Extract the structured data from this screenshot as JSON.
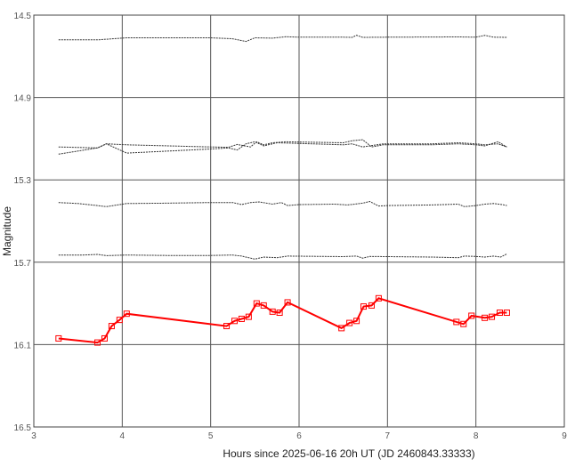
{
  "chart_data": {
    "type": "line",
    "xlabel": "Hours since 2025-06-16 20h UT (JD 2460843.33333)",
    "ylabel": "Magnitude",
    "xlim": [
      3,
      9
    ],
    "ylim": [
      14.5,
      16.5
    ],
    "y_inverted": true,
    "grid": true,
    "x_ticks": [
      "3",
      "4",
      "5",
      "6",
      "7",
      "8",
      "9"
    ],
    "y_ticks": [
      "14.5",
      "14.9",
      "15.3",
      "15.7",
      "16.1",
      "16.5"
    ],
    "series": [
      {
        "color": "#333333",
        "marker": "none",
        "points": [
          [
            3.28,
            14.62
          ],
          [
            3.72,
            14.62
          ],
          [
            4.05,
            14.61
          ],
          [
            5.0,
            14.61
          ],
          [
            5.25,
            14.615
          ],
          [
            5.4,
            14.628
          ],
          [
            5.5,
            14.61
          ],
          [
            5.7,
            14.612
          ],
          [
            5.85,
            14.605
          ],
          [
            6.0,
            14.607
          ],
          [
            6.5,
            14.607
          ],
          [
            6.6,
            14.608
          ],
          [
            6.65,
            14.598
          ],
          [
            6.72,
            14.608
          ],
          [
            7.0,
            14.607
          ],
          [
            7.8,
            14.606
          ],
          [
            8.0,
            14.607
          ],
          [
            8.05,
            14.603
          ],
          [
            8.1,
            14.598
          ],
          [
            8.2,
            14.607
          ],
          [
            8.35,
            14.608
          ]
        ]
      },
      {
        "color": "#333333",
        "marker": "none",
        "points": [
          [
            3.28,
            15.14
          ],
          [
            3.72,
            15.145
          ],
          [
            3.82,
            15.125
          ],
          [
            4.05,
            15.13
          ],
          [
            5.0,
            15.14
          ],
          [
            5.2,
            15.142
          ],
          [
            5.3,
            15.128
          ],
          [
            5.45,
            15.14
          ],
          [
            5.52,
            15.115
          ],
          [
            5.6,
            15.13
          ],
          [
            5.7,
            15.12
          ],
          [
            5.85,
            15.115
          ],
          [
            6.5,
            15.12
          ],
          [
            6.6,
            15.11
          ],
          [
            6.72,
            15.105
          ],
          [
            6.82,
            15.14
          ],
          [
            6.95,
            15.13
          ],
          [
            7.5,
            15.13
          ],
          [
            7.8,
            15.125
          ],
          [
            8.0,
            15.13
          ],
          [
            8.1,
            15.135
          ],
          [
            8.25,
            15.115
          ],
          [
            8.35,
            15.14
          ]
        ]
      },
      {
        "color": "#333333",
        "marker": "none",
        "points": [
          [
            3.28,
            15.175
          ],
          [
            3.72,
            15.145
          ],
          [
            3.82,
            15.125
          ],
          [
            4.05,
            15.17
          ],
          [
            5.0,
            15.15
          ],
          [
            5.2,
            15.145
          ],
          [
            5.3,
            15.155
          ],
          [
            5.4,
            15.125
          ],
          [
            5.5,
            15.115
          ],
          [
            5.6,
            15.135
          ],
          [
            5.75,
            15.12
          ],
          [
            6.5,
            15.13
          ],
          [
            6.6,
            15.125
          ],
          [
            6.72,
            15.14
          ],
          [
            6.95,
            15.125
          ],
          [
            7.5,
            15.125
          ],
          [
            7.8,
            15.12
          ],
          [
            8.0,
            15.125
          ],
          [
            8.1,
            15.13
          ],
          [
            8.25,
            15.125
          ],
          [
            8.35,
            15.14
          ]
        ]
      },
      {
        "color": "#333333",
        "marker": "none",
        "points": [
          [
            3.28,
            15.41
          ],
          [
            3.5,
            15.415
          ],
          [
            3.72,
            15.425
          ],
          [
            3.82,
            15.43
          ],
          [
            4.05,
            15.415
          ],
          [
            4.5,
            15.413
          ],
          [
            5.0,
            15.41
          ],
          [
            5.25,
            15.41
          ],
          [
            5.35,
            15.42
          ],
          [
            5.45,
            15.41
          ],
          [
            5.55,
            15.407
          ],
          [
            5.7,
            15.418
          ],
          [
            5.8,
            15.41
          ],
          [
            5.87,
            15.425
          ],
          [
            6.0,
            15.42
          ],
          [
            6.4,
            15.418
          ],
          [
            6.55,
            15.422
          ],
          [
            6.72,
            15.413
          ],
          [
            6.8,
            15.405
          ],
          [
            6.9,
            15.427
          ],
          [
            7.0,
            15.425
          ],
          [
            7.5,
            15.422
          ],
          [
            7.8,
            15.418
          ],
          [
            7.87,
            15.43
          ],
          [
            8.0,
            15.425
          ],
          [
            8.1,
            15.418
          ],
          [
            8.2,
            15.415
          ],
          [
            8.3,
            15.42
          ],
          [
            8.35,
            15.425
          ]
        ]
      },
      {
        "color": "#333333",
        "marker": "none",
        "points": [
          [
            3.28,
            15.665
          ],
          [
            3.55,
            15.665
          ],
          [
            3.72,
            15.662
          ],
          [
            3.82,
            15.668
          ],
          [
            4.05,
            15.665
          ],
          [
            4.5,
            15.667
          ],
          [
            5.0,
            15.667
          ],
          [
            5.25,
            15.665
          ],
          [
            5.35,
            15.67
          ],
          [
            5.5,
            15.685
          ],
          [
            5.6,
            15.675
          ],
          [
            5.75,
            15.678
          ],
          [
            5.87,
            15.67
          ],
          [
            6.5,
            15.673
          ],
          [
            6.65,
            15.67
          ],
          [
            6.72,
            15.68
          ],
          [
            6.8,
            15.672
          ],
          [
            7.5,
            15.675
          ],
          [
            7.8,
            15.678
          ],
          [
            7.87,
            15.67
          ],
          [
            8.0,
            15.672
          ],
          [
            8.1,
            15.675
          ],
          [
            8.2,
            15.67
          ],
          [
            8.28,
            15.675
          ],
          [
            8.35,
            15.66
          ]
        ]
      },
      {
        "color": "#ff0000",
        "marker": "square",
        "points": [
          [
            3.28,
            16.07
          ],
          [
            3.72,
            16.09
          ],
          [
            3.8,
            16.07
          ],
          [
            3.88,
            16.01
          ],
          [
            3.97,
            15.98
          ],
          [
            4.05,
            15.95
          ],
          [
            5.18,
            16.01
          ],
          [
            5.27,
            15.985
          ],
          [
            5.35,
            15.975
          ],
          [
            5.43,
            15.965
          ],
          [
            5.52,
            15.9
          ],
          [
            5.6,
            15.91
          ],
          [
            5.7,
            15.94
          ],
          [
            5.78,
            15.945
          ],
          [
            5.87,
            15.895
          ],
          [
            6.48,
            16.02
          ],
          [
            6.57,
            15.995
          ],
          [
            6.65,
            15.985
          ],
          [
            6.73,
            15.915
          ],
          [
            6.82,
            15.91
          ],
          [
            6.9,
            15.875
          ],
          [
            7.78,
            15.99
          ],
          [
            7.86,
            16.0
          ],
          [
            7.95,
            15.96
          ],
          [
            8.1,
            15.97
          ],
          [
            8.18,
            15.965
          ],
          [
            8.27,
            15.945
          ],
          [
            8.35,
            15.945
          ]
        ]
      }
    ]
  }
}
